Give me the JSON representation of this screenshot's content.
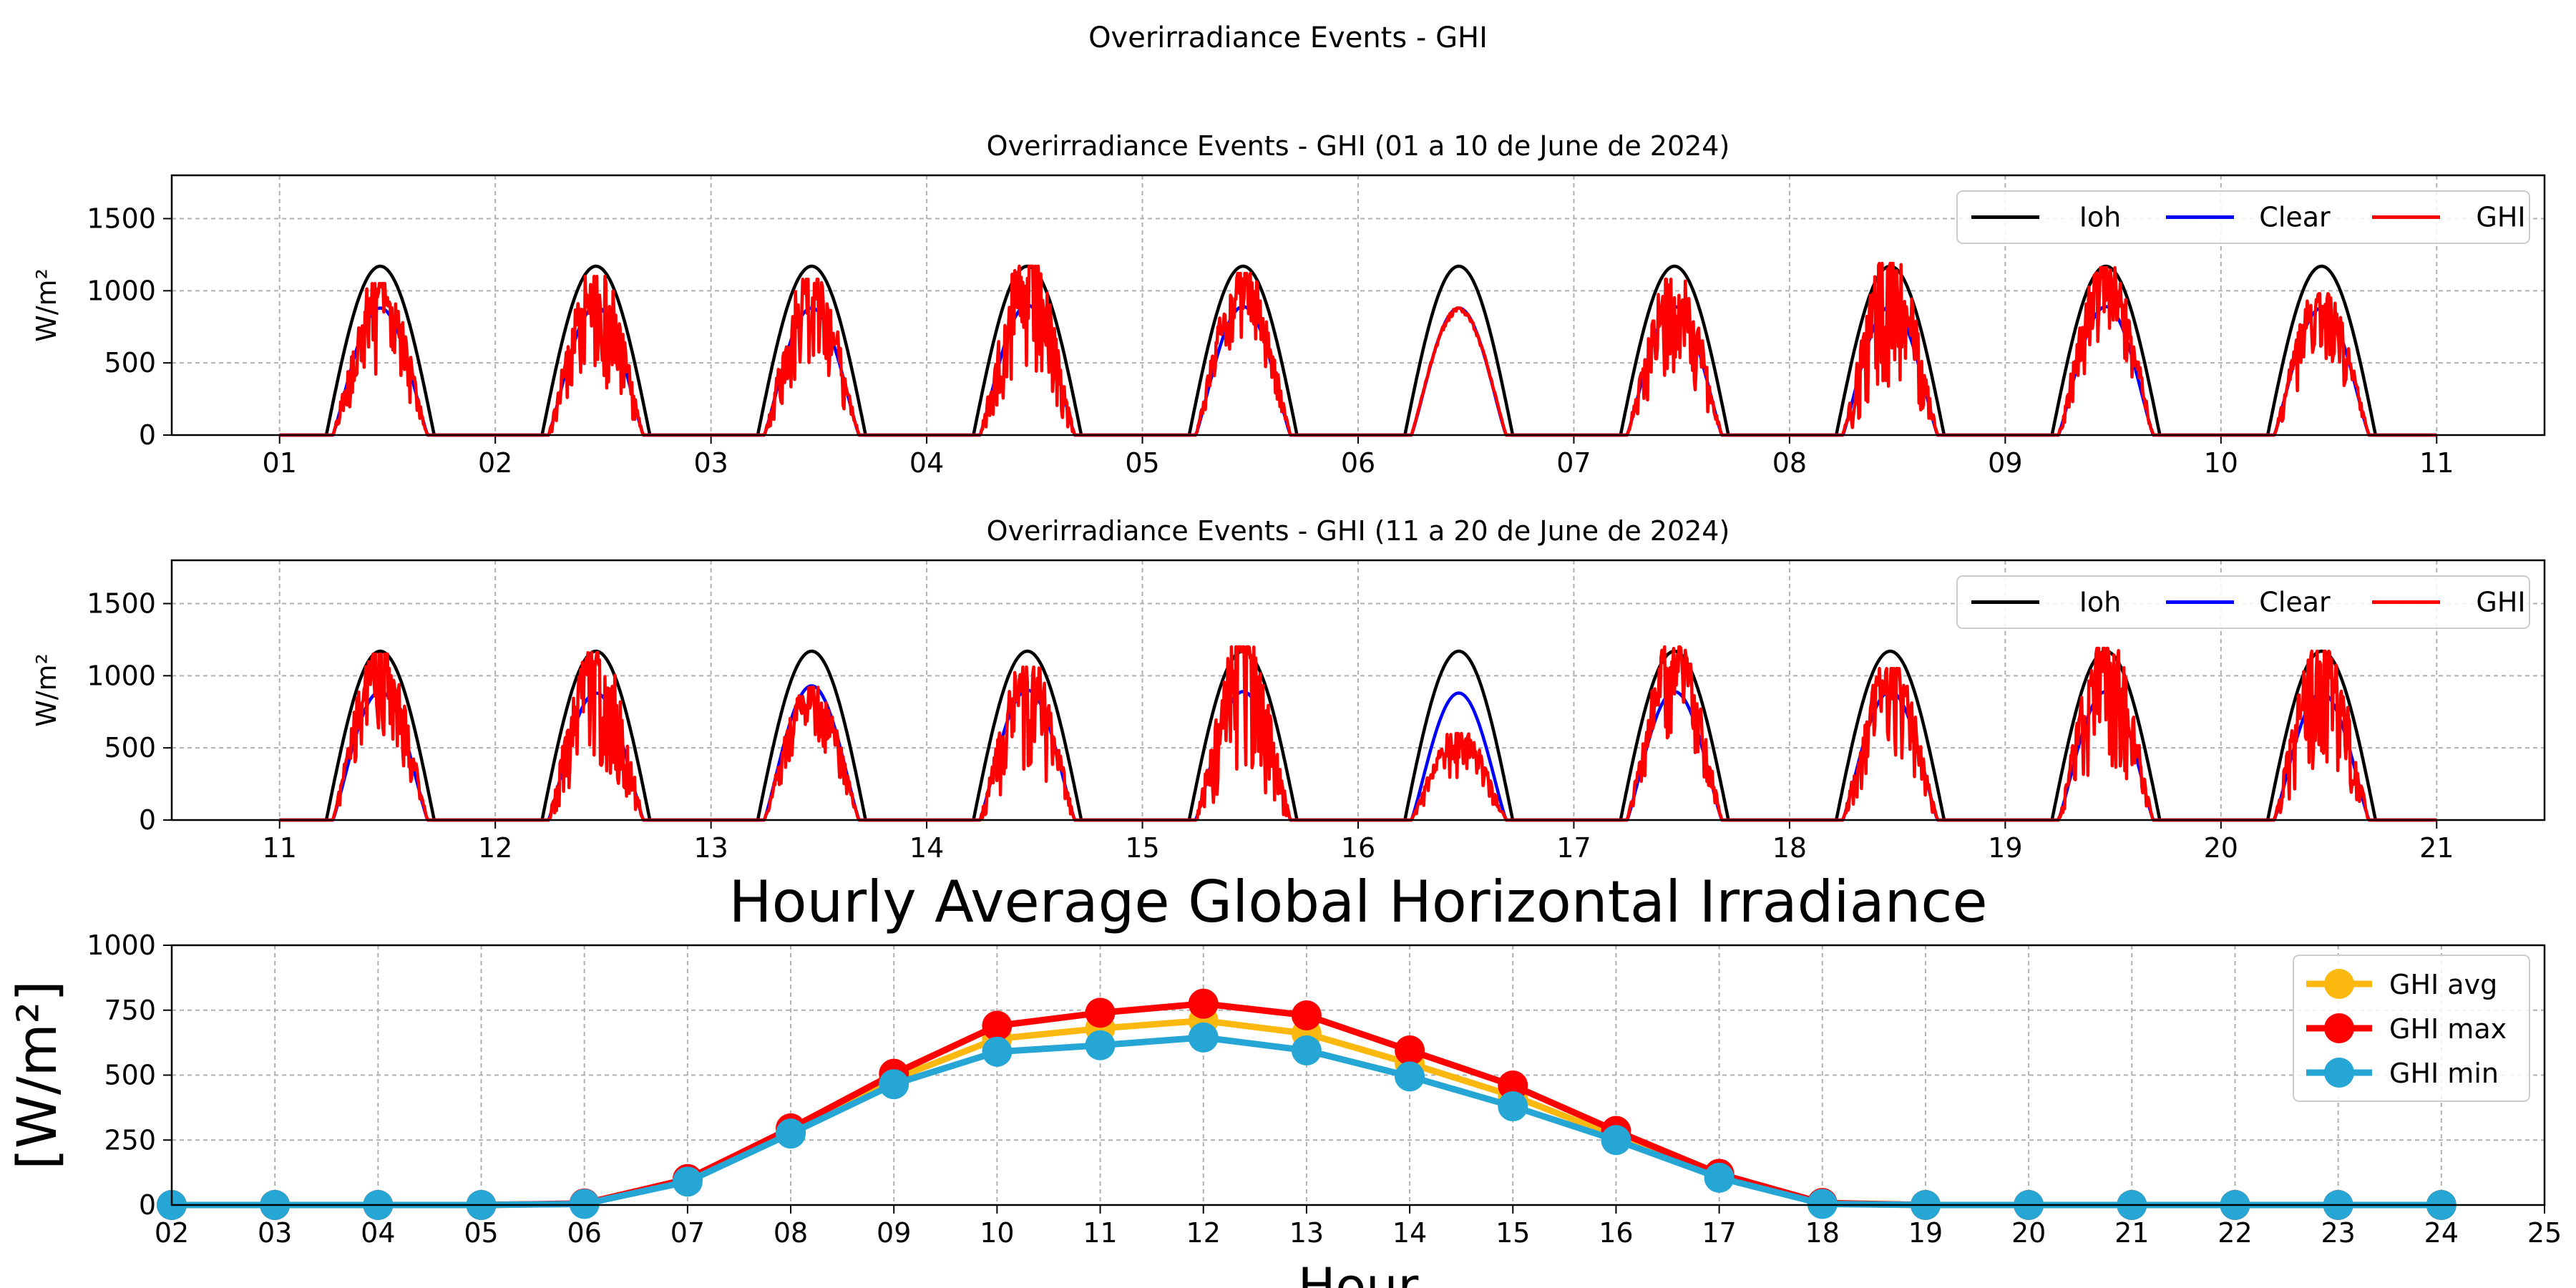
{
  "figure_title": "Overirradiance Events - GHI",
  "colors": {
    "ioh": "#000000",
    "clear": "#0000ff",
    "ghi": "#ff0000",
    "avg": "#fbb80f",
    "max": "#ff0000",
    "min": "#25a6d4",
    "grid": "#b0b0b0"
  },
  "chart_data": [
    {
      "type": "line",
      "title": "Overirradiance Events - GHI  (01 a 10 de June de 2024)",
      "ylabel": "W/m²",
      "xlabel": "",
      "xlim": [
        0.5,
        11.5
      ],
      "ylim": [
        0,
        1800
      ],
      "xticks": [
        "01",
        "02",
        "03",
        "04",
        "05",
        "06",
        "07",
        "08",
        "09",
        "10",
        "11"
      ],
      "yticks": [
        "0",
        "500",
        "1000",
        "1500"
      ],
      "grid": true,
      "legend": {
        "position": "top-right",
        "columns": 3
      },
      "days": [
        1,
        2,
        3,
        4,
        5,
        6,
        7,
        8,
        9,
        10
      ],
      "sunrise_hour": 5.2,
      "sunset_hour": 17.2,
      "series": [
        {
          "name": "Ioh",
          "peak": 1170
        },
        {
          "name": "Clear",
          "peak_by_day": [
            880,
            890,
            880,
            900,
            890,
            880,
            890,
            890,
            890,
            880
          ]
        },
        {
          "name": "GHI",
          "peak_by_day": [
            1050,
            1100,
            1080,
            1170,
            1120,
            880,
            1080,
            1190,
            1160,
            980
          ],
          "variability_by_day": [
            0.7,
            0.8,
            0.7,
            0.8,
            0.5,
            0.05,
            0.7,
            0.9,
            0.6,
            0.6
          ]
        }
      ]
    },
    {
      "type": "line",
      "title": "Overirradiance Events - GHI  (11 a 20 de June de 2024)",
      "ylabel": "W/m²",
      "xlabel": "",
      "xlim": [
        10.5,
        21.5
      ],
      "ylim": [
        0,
        1800
      ],
      "xticks": [
        "11",
        "12",
        "13",
        "14",
        "15",
        "16",
        "17",
        "18",
        "19",
        "20",
        "21"
      ],
      "yticks": [
        "0",
        "500",
        "1000",
        "1500"
      ],
      "grid": true,
      "legend": {
        "position": "top-right",
        "columns": 3
      },
      "days": [
        11,
        12,
        13,
        14,
        15,
        16,
        17,
        18,
        19,
        20
      ],
      "sunrise_hour": 5.2,
      "sunset_hour": 17.2,
      "series": [
        {
          "name": "Ioh",
          "peak": 1170
        },
        {
          "name": "Clear",
          "peak_by_day": [
            890,
            880,
            930,
            900,
            890,
            880,
            890,
            890,
            890,
            880
          ]
        },
        {
          "name": "GHI",
          "peak_by_day": [
            1150,
            1160,
            920,
            1060,
            1200,
            600,
            1200,
            1050,
            1190,
            1170
          ],
          "variability_by_day": [
            0.6,
            0.8,
            0.5,
            0.8,
            0.9,
            0.6,
            0.6,
            0.7,
            0.8,
            0.8
          ]
        }
      ]
    },
    {
      "type": "line",
      "title": "Hourly Average Global Horizontal Irradiance",
      "ylabel": "[W/m²]",
      "xlabel": "Hour",
      "xlim": [
        2,
        25
      ],
      "ylim": [
        0,
        1000
      ],
      "xticks": [
        "02",
        "03",
        "04",
        "05",
        "06",
        "07",
        "08",
        "09",
        "10",
        "11",
        "12",
        "13",
        "14",
        "15",
        "16",
        "17",
        "18",
        "19",
        "20",
        "21",
        "22",
        "23",
        "24",
        "25"
      ],
      "yticks": [
        "0",
        "250",
        "500",
        "750",
        "1000"
      ],
      "grid": true,
      "legend": {
        "position": "top-right",
        "columns": 1
      },
      "x": [
        2,
        3,
        4,
        5,
        6,
        7,
        8,
        9,
        10,
        11,
        12,
        13,
        14,
        15,
        16,
        17,
        18,
        19,
        20,
        21,
        22,
        23,
        24
      ],
      "series": [
        {
          "name": "GHI avg",
          "values": [
            0,
            0,
            0,
            0,
            5,
            95,
            285,
            485,
            640,
            680,
            710,
            660,
            545,
            420,
            265,
            110,
            5,
            0,
            0,
            0,
            0,
            0,
            0
          ]
        },
        {
          "name": "GHI max",
          "values": [
            0,
            0,
            0,
            0,
            6,
            100,
            295,
            505,
            690,
            740,
            775,
            730,
            595,
            460,
            285,
            120,
            8,
            0,
            0,
            0,
            0,
            0,
            0
          ]
        },
        {
          "name": "GHI min",
          "values": [
            0,
            0,
            0,
            0,
            4,
            90,
            275,
            465,
            590,
            615,
            645,
            595,
            495,
            380,
            250,
            105,
            4,
            0,
            0,
            0,
            0,
            0,
            0
          ]
        }
      ]
    }
  ]
}
